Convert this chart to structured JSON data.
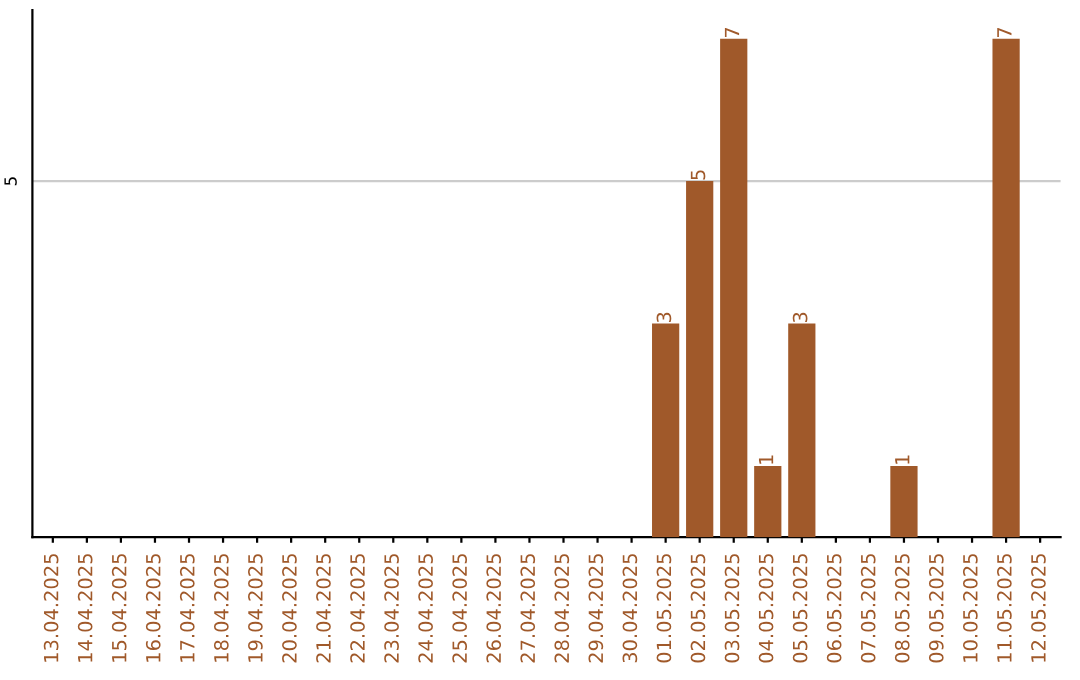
{
  "chart_data": {
    "type": "bar",
    "categories": [
      "13.04.2025",
      "14.04.2025",
      "15.04.2025",
      "16.04.2025",
      "17.04.2025",
      "18.04.2025",
      "19.04.2025",
      "20.04.2025",
      "21.04.2025",
      "22.04.2025",
      "23.04.2025",
      "24.04.2025",
      "25.04.2025",
      "26.04.2025",
      "27.04.2025",
      "28.04.2025",
      "29.04.2025",
      "30.04.2025",
      "01.05.2025",
      "02.05.2025",
      "03.05.2025",
      "04.05.2025",
      "05.05.2025",
      "06.05.2025",
      "07.05.2025",
      "08.05.2025",
      "09.05.2025",
      "10.05.2025",
      "11.05.2025",
      "12.05.2025"
    ],
    "values": [
      null,
      null,
      null,
      null,
      null,
      null,
      null,
      null,
      null,
      null,
      null,
      null,
      null,
      null,
      null,
      null,
      null,
      null,
      3,
      5,
      7,
      1,
      3,
      null,
      null,
      1,
      null,
      null,
      7,
      null
    ],
    "data_labels": true,
    "color": "#a0592a",
    "ylim": [
      0,
      7.4
    ],
    "ref_lines": [
      {
        "axis": "y",
        "value": 5,
        "label": "5",
        "color": "#cccccc"
      }
    ],
    "legend": false
  }
}
